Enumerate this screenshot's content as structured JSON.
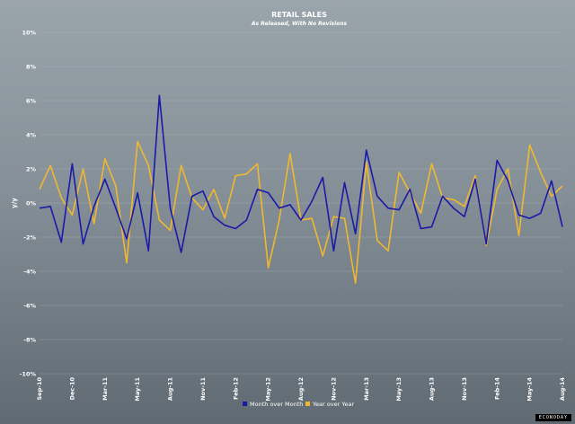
{
  "chart_data": {
    "type": "line",
    "title": "RETAIL SALES",
    "subtitle": "As Released, With No Revisions",
    "xlabel": "",
    "ylabel": "y/y",
    "ylim": [
      -10,
      10
    ],
    "yticks": [
      10,
      8,
      6,
      4,
      2,
      0,
      -2,
      -4,
      -6,
      -8,
      -10
    ],
    "ytick_labels": [
      "10%",
      "8%",
      "6%",
      "4%",
      "2%",
      "0%",
      "-2%",
      "-4%",
      "-6%",
      "-8%",
      "-10%"
    ],
    "x_tick_labels": [
      "Sep-10",
      "Dec-10",
      "Mar-11",
      "May-11",
      "Aug-11",
      "Nov-11",
      "Feb-12",
      "May-12",
      "Aug-12",
      "Nov-12",
      "Mar-13",
      "May-13",
      "Aug-13",
      "Nov-13",
      "Feb-14",
      "May-14",
      "Aug-14"
    ],
    "x_tick_positions": [
      0,
      3,
      6,
      9,
      12,
      15,
      18,
      21,
      24,
      27,
      30,
      33,
      36,
      39,
      42,
      45,
      48
    ],
    "x_count": 49,
    "grid": true,
    "legend_position": "bottom-center",
    "series": [
      {
        "name": "Month over Month",
        "color": "#1a1aa8",
        "values": [
          -0.3,
          -0.2,
          -2.3,
          2.3,
          -2.4,
          -0.2,
          1.4,
          -0.3,
          -2.1,
          0.6,
          -2.8,
          6.3,
          -0.3,
          -2.9,
          0.4,
          0.7,
          -0.8,
          -1.3,
          -1.5,
          -1.0,
          0.8,
          0.6,
          -0.3,
          -0.1,
          -1.0,
          0.1,
          1.5,
          -2.8,
          1.2,
          -1.8,
          3.1,
          0.4,
          -0.3,
          -0.4,
          0.8,
          -1.5,
          -1.4,
          0.4,
          -0.3,
          -0.8,
          1.4,
          -2.4,
          2.5,
          1.3,
          -0.7,
          -0.9,
          -0.6,
          1.3,
          -1.4
        ]
      },
      {
        "name": "Year over Year",
        "color": "#f0b830",
        "values": [
          0.8,
          2.2,
          0.3,
          -0.7,
          2.0,
          -1.2,
          2.6,
          1.0,
          -3.5,
          3.6,
          2.2,
          -1.0,
          -1.6,
          2.2,
          0.3,
          -0.4,
          0.8,
          -0.9,
          1.6,
          1.7,
          2.3,
          -3.8,
          -1.0,
          2.9,
          -1.0,
          -0.9,
          -3.1,
          -0.8,
          -0.9,
          -4.7,
          2.4,
          -2.2,
          -2.8,
          1.8,
          0.6,
          -0.6,
          2.3,
          0.3,
          0.2,
          -0.2,
          1.6,
          -2.5,
          0.8,
          2.0,
          -1.9,
          3.4,
          1.8,
          0.4,
          1.0
        ]
      }
    ]
  },
  "watermark": "ECONODAY"
}
